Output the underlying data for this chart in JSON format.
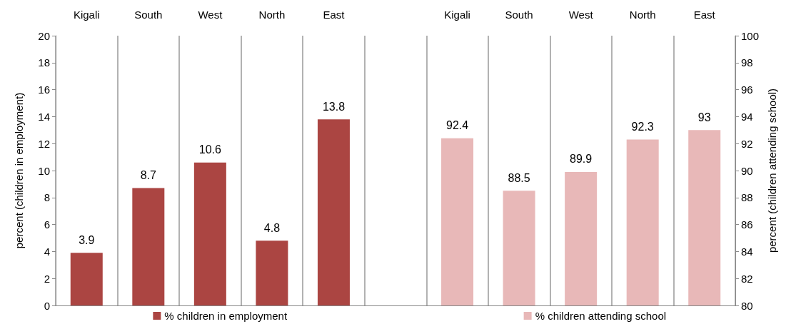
{
  "chart_data": {
    "type": "bar",
    "categories": [
      "Kigali",
      "South",
      "West",
      "North",
      "East",
      null,
      "Kigali",
      "South",
      "West",
      "North",
      "East"
    ],
    "series": [
      {
        "name": "% children in employment",
        "color": "#ab4542",
        "values": [
          3.9,
          8.7,
          10.6,
          4.8,
          13.8,
          null,
          null,
          null,
          null,
          null,
          null
        ]
      },
      {
        "name": "% children attending school",
        "color": "#e8b8b8",
        "axis": "y2",
        "values": [
          null,
          null,
          null,
          null,
          null,
          null,
          92.4,
          88.5,
          89.9,
          92.3,
          93
        ]
      }
    ],
    "ylabel": "percent (children in employment)",
    "y2label": "percent (children attending school)",
    "ylim": [
      0,
      20
    ],
    "yticks": [
      0,
      2,
      4,
      6,
      8,
      10,
      12,
      14,
      16,
      18,
      20
    ],
    "y2lim": [
      80,
      100
    ],
    "y2ticks": [
      80,
      82,
      84,
      86,
      88,
      90,
      92,
      94,
      96,
      98,
      100
    ],
    "data_labels": true,
    "grid": "x",
    "legend": "bottom"
  }
}
